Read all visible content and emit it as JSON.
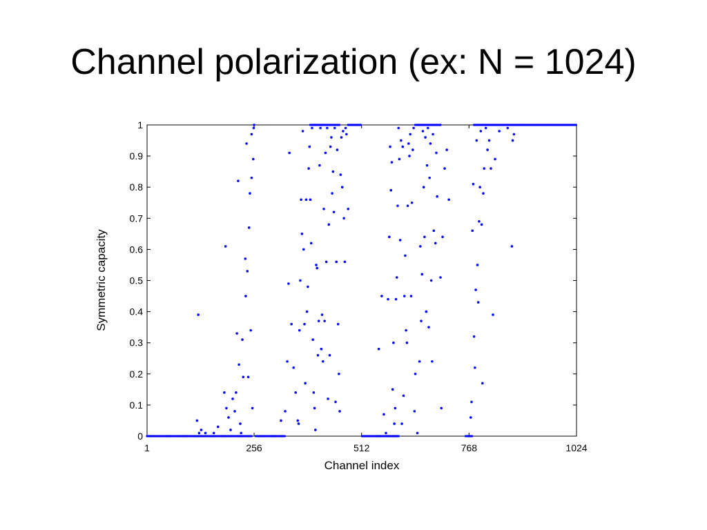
{
  "slide": {
    "title": "Channel polarization (ex: N = 1024)"
  },
  "chart_data": {
    "type": "scatter",
    "xlabel": "Channel index",
    "ylabel": "Symmetric capacity",
    "xlim": [
      1,
      1024
    ],
    "ylim": [
      0,
      1
    ],
    "xticks": [
      1,
      256,
      512,
      768,
      1024
    ],
    "yticks": [
      0,
      0.1,
      0.2,
      0.3,
      0.4,
      0.5,
      0.6,
      0.7,
      0.8,
      0.9,
      1
    ],
    "ytick_labels": [
      "0",
      "0.1",
      "0.2",
      "0.3",
      "0.4",
      "0.5",
      "0.6",
      "0.7",
      "0.8",
      "0.9",
      "1"
    ],
    "grid": false,
    "legend": "none",
    "marker_color": "#0000ff",
    "zero_segments": [
      [
        1,
        250
      ],
      [
        260,
        330
      ],
      [
        513,
        600
      ],
      [
        760,
        775
      ]
    ],
    "one_segments": [
      [
        390,
        460
      ],
      [
        480,
        512
      ],
      [
        640,
        700
      ],
      [
        780,
        1024
      ]
    ],
    "points": [
      [
        120,
        0.05
      ],
      [
        123,
        0.39
      ],
      [
        125,
        0.01
      ],
      [
        130,
        0.02
      ],
      [
        140,
        0.01
      ],
      [
        160,
        0.01
      ],
      [
        170,
        0.03
      ],
      [
        185,
        0.14
      ],
      [
        188,
        0.61
      ],
      [
        190,
        0.09
      ],
      [
        195,
        0.06
      ],
      [
        200,
        0.02
      ],
      [
        205,
        0.12
      ],
      [
        210,
        0.08
      ],
      [
        213,
        0.14
      ],
      [
        215,
        0.33
      ],
      [
        218,
        0.82
      ],
      [
        220,
        0.23
      ],
      [
        223,
        0.04
      ],
      [
        225,
        0.01
      ],
      [
        228,
        0.31
      ],
      [
        230,
        0.19
      ],
      [
        235,
        0.57
      ],
      [
        236,
        0.45
      ],
      [
        238,
        0.94
      ],
      [
        240,
        0.53
      ],
      [
        242,
        0.19
      ],
      [
        244,
        0.67
      ],
      [
        246,
        0.78
      ],
      [
        248,
        0.34
      ],
      [
        250,
        0.97
      ],
      [
        250,
        0.83
      ],
      [
        252,
        0.09
      ],
      [
        254,
        0.89
      ],
      [
        255,
        0.99
      ],
      [
        256,
        1.0
      ],
      [
        320,
        0.05
      ],
      [
        330,
        0.08
      ],
      [
        335,
        0.24
      ],
      [
        338,
        0.49
      ],
      [
        340,
        0.91
      ],
      [
        345,
        0.36
      ],
      [
        350,
        0.22
      ],
      [
        355,
        0.14
      ],
      [
        360,
        0.05
      ],
      [
        362,
        0.04
      ],
      [
        364,
        0.34
      ],
      [
        366,
        0.5
      ],
      [
        368,
        0.76
      ],
      [
        370,
        0.65
      ],
      [
        372,
        0.98
      ],
      [
        374,
        0.6
      ],
      [
        376,
        0.36
      ],
      [
        378,
        0.17
      ],
      [
        380,
        0.76
      ],
      [
        382,
        0.4
      ],
      [
        384,
        0.48
      ],
      [
        386,
        0.86
      ],
      [
        388,
        0.93
      ],
      [
        390,
        0.76
      ],
      [
        392,
        0.62
      ],
      [
        394,
        0.99
      ],
      [
        396,
        0.31
      ],
      [
        398,
        0.14
      ],
      [
        400,
        0.09
      ],
      [
        402,
        0.02
      ],
      [
        404,
        0.55
      ],
      [
        406,
        0.54
      ],
      [
        408,
        0.26
      ],
      [
        410,
        0.37
      ],
      [
        412,
        0.87
      ],
      [
        414,
        0.99
      ],
      [
        416,
        0.28
      ],
      [
        418,
        0.39
      ],
      [
        420,
        0.24
      ],
      [
        422,
        0.73
      ],
      [
        424,
        0.37
      ],
      [
        426,
        0.91
      ],
      [
        428,
        0.56
      ],
      [
        430,
        0.99
      ],
      [
        432,
        0.12
      ],
      [
        434,
        0.68
      ],
      [
        436,
        0.26
      ],
      [
        438,
        0.93
      ],
      [
        440,
        0.96
      ],
      [
        442,
        0.78
      ],
      [
        444,
        0.85
      ],
      [
        446,
        0.72
      ],
      [
        448,
        0.99
      ],
      [
        450,
        0.11
      ],
      [
        452,
        0.56
      ],
      [
        454,
        0.92
      ],
      [
        456,
        0.36
      ],
      [
        458,
        0.2
      ],
      [
        460,
        0.08
      ],
      [
        462,
        0.84
      ],
      [
        464,
        0.96
      ],
      [
        466,
        0.8
      ],
      [
        468,
        0.98
      ],
      [
        470,
        0.7
      ],
      [
        472,
        0.56
      ],
      [
        474,
        0.99
      ],
      [
        476,
        0.97
      ],
      [
        480,
        0.73
      ],
      [
        553,
        0.28
      ],
      [
        560,
        0.45
      ],
      [
        565,
        0.07
      ],
      [
        570,
        0.01
      ],
      [
        575,
        0.44
      ],
      [
        578,
        0.64
      ],
      [
        580,
        0.93
      ],
      [
        582,
        0.79
      ],
      [
        584,
        0.88
      ],
      [
        586,
        0.15
      ],
      [
        588,
        0.3
      ],
      [
        590,
        0.04
      ],
      [
        592,
        0.09
      ],
      [
        594,
        0.44
      ],
      [
        596,
        0.51
      ],
      [
        598,
        0.74
      ],
      [
        600,
        0.99
      ],
      [
        602,
        0.89
      ],
      [
        604,
        0.63
      ],
      [
        606,
        0.95
      ],
      [
        608,
        0.04
      ],
      [
        610,
        0.93
      ],
      [
        612,
        0.13
      ],
      [
        614,
        0.45
      ],
      [
        616,
        0.58
      ],
      [
        618,
        0.34
      ],
      [
        620,
        0.3
      ],
      [
        622,
        0.74
      ],
      [
        624,
        0.94
      ],
      [
        626,
        0.9
      ],
      [
        628,
        0.97
      ],
      [
        630,
        0.45
      ],
      [
        632,
        0.75
      ],
      [
        634,
        0.92
      ],
      [
        636,
        0.99
      ],
      [
        638,
        0.08
      ],
      [
        640,
        0.2
      ],
      [
        645,
        0.01
      ],
      [
        650,
        0.24
      ],
      [
        652,
        0.61
      ],
      [
        654,
        0.37
      ],
      [
        656,
        0.52
      ],
      [
        658,
        0.98
      ],
      [
        660,
        0.8
      ],
      [
        662,
        0.64
      ],
      [
        664,
        0.96
      ],
      [
        666,
        0.4
      ],
      [
        668,
        0.87
      ],
      [
        670,
        0.99
      ],
      [
        672,
        0.35
      ],
      [
        674,
        0.83
      ],
      [
        676,
        0.94
      ],
      [
        678,
        0.5
      ],
      [
        680,
        0.24
      ],
      [
        682,
        0.97
      ],
      [
        684,
        0.66
      ],
      [
        688,
        0.62
      ],
      [
        690,
        0.91
      ],
      [
        692,
        0.77
      ],
      [
        700,
        0.51
      ],
      [
        702,
        0.09
      ],
      [
        705,
        0.64
      ],
      [
        710,
        0.86
      ],
      [
        715,
        0.92
      ],
      [
        720,
        0.76
      ],
      [
        772,
        0.06
      ],
      [
        774,
        0.11
      ],
      [
        776,
        0.66
      ],
      [
        778,
        0.81
      ],
      [
        780,
        0.32
      ],
      [
        782,
        0.22
      ],
      [
        784,
        0.47
      ],
      [
        786,
        0.95
      ],
      [
        788,
        0.55
      ],
      [
        790,
        0.43
      ],
      [
        792,
        0.69
      ],
      [
        794,
        0.8
      ],
      [
        796,
        0.98
      ],
      [
        798,
        0.68
      ],
      [
        800,
        0.17
      ],
      [
        802,
        0.78
      ],
      [
        804,
        0.86
      ],
      [
        808,
        0.99
      ],
      [
        812,
        0.92
      ],
      [
        816,
        0.95
      ],
      [
        820,
        0.86
      ],
      [
        825,
        0.39
      ],
      [
        830,
        0.89
      ],
      [
        840,
        0.98
      ],
      [
        860,
        0.99
      ],
      [
        870,
        0.61
      ],
      [
        872,
        0.95
      ],
      [
        875,
        0.97
      ]
    ]
  }
}
